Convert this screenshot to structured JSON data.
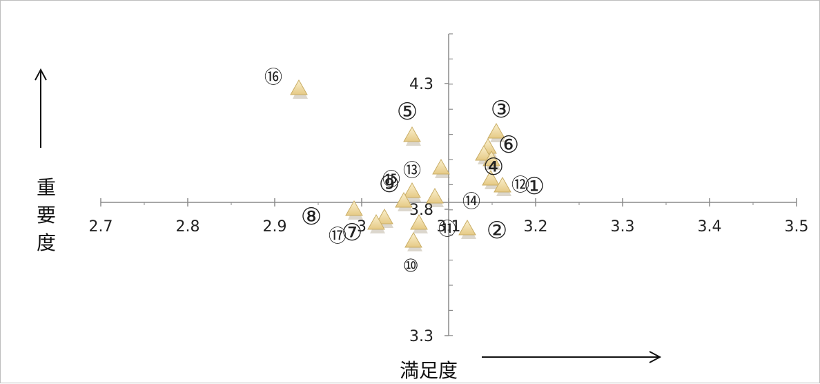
{
  "chart_data": {
    "type": "scatter",
    "marker": "triangle",
    "marker_color": "#f2dfa7",
    "marker_edge_color": "#c9ad65",
    "xlabel": "満足度",
    "ylabel": "重要度",
    "xlim": [
      2.7,
      3.5
    ],
    "ylim": [
      3.3,
      4.5
    ],
    "x_ticks": [
      "2.7",
      "2.8",
      "2.9",
      "3",
      "3.1",
      "3.2",
      "3.3",
      "3.4",
      "3.5"
    ],
    "y_ticks": [
      "4.3",
      "3.8",
      "3.3"
    ],
    "points": [
      {
        "x": 3.17,
        "y": 3.86,
        "label": "③"
      },
      {
        "x": 3.13,
        "y": 3.75,
        "label": "⑫"
      },
      {
        "x": 3.07,
        "y": 3.89,
        "label": "⑬"
      },
      {
        "x": 3.08,
        "y": 3.88,
        "label": "⑭"
      },
      {
        "x": 3.09,
        "y": 3.87,
        "label": "⑮"
      },
      {
        "x": 3.1,
        "y": 3.91,
        "label": "⑰"
      }
    ]
  },
  "labels": [
    {
      "text": "⑯",
      "x": 2.9,
      "y": 4.53
    },
    {
      "text": "⑤",
      "x": 3.04,
      "y": 4.23
    },
    {
      "text": "③",
      "x": 3.155,
      "y": 4.23
    },
    {
      "text": "⑥",
      "x": 3.165,
      "y": 4.06
    },
    {
      "text": "④",
      "x": 3.155,
      "y": 4.13
    },
    {
      "text": "⑬",
      "x": 3.04,
      "y": 4.05
    },
    {
      "text": "⑮",
      "x": 3.01,
      "y": 4.02
    },
    {
      "text": "⑨",
      "x": 3.01,
      "y": 4.0
    },
    {
      "text": "⑫",
      "x": 3.185,
      "y": 4.03
    },
    {
      "text": "①",
      "x": 3.195,
      "y": 4.02
    },
    {
      "text": "⑭",
      "x": 3.125,
      "y": 3.97
    },
    {
      "text": "⑧",
      "x": 2.935,
      "y": 3.79
    },
    {
      "text": "⑦",
      "x": 2.985,
      "y": 3.74
    },
    {
      "text": "⑰",
      "x": 2.975,
      "y": 3.74
    },
    {
      "text": "⑪",
      "x": 3.095,
      "y": 3.73
    },
    {
      "text": "②",
      "x": 3.155,
      "y": 3.73
    },
    {
      "text": "⑩",
      "x": 3.08,
      "y": 3.65
    }
  ]
}
